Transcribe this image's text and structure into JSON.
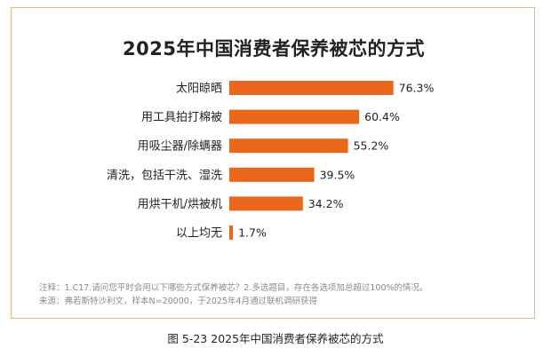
{
  "chart_data": {
    "type": "bar",
    "orientation": "horizontal",
    "title": "2025年中国消费者保养被芯的方式",
    "categories": [
      "太阳晾晒",
      "用工具拍打棉被",
      "用吸尘器/除螨器",
      "清洗，包括干洗、湿洗",
      "用烘干机/烘被机",
      "以上均无"
    ],
    "values": [
      76.3,
      60.4,
      55.2,
      39.5,
      34.2,
      1.7
    ],
    "value_labels": [
      "76.3%",
      "60.4%",
      "55.2%",
      "39.5%",
      "34.2%",
      "1.7%"
    ],
    "unit": "%",
    "xlim": [
      0,
      100
    ],
    "grid": false,
    "legend": "none",
    "bar_color": "#e8671c"
  },
  "notes": {
    "line1": "注释：1.C17.请问您平时会用以下哪些方式保养被芯？2.多选题目，存在各选项加总超过100%的情况。",
    "line2": "来源：弗若斯特沙利文，样本N=20000，于2025年4月通过联机调研获得"
  },
  "caption": "图 5-23   2025年中国消费者保养被芯的方式"
}
